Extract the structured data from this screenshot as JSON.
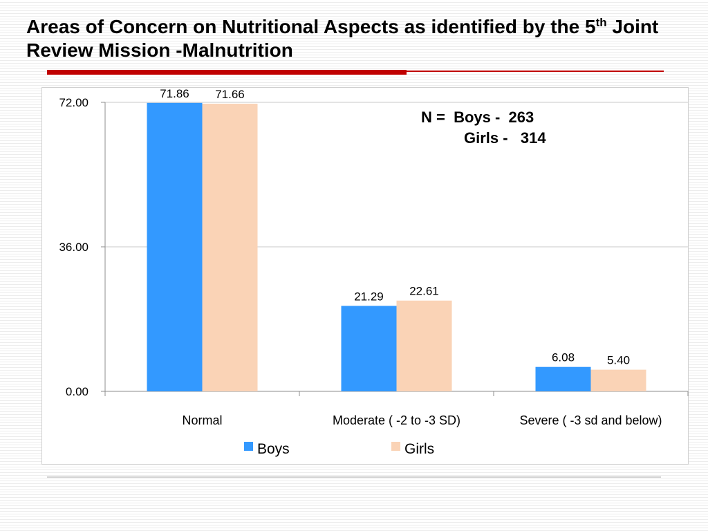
{
  "slide": {
    "title_part1": "Areas of Concern on Nutritional Aspects as identified by the 5",
    "title_sup": "th",
    "title_part2": " Joint Review Mission -Malnutrition"
  },
  "note": {
    "line1": "N =  Boys -  263",
    "line2": "Girls -   314"
  },
  "colors": {
    "boys": "#3399ff",
    "girls": "#fad3b6",
    "title_rule": "#c00000"
  },
  "chart_data": {
    "type": "bar",
    "categories": [
      "Normal",
      "Moderate ( -2 to -3 SD)",
      "Severe  ( -3 sd and below)"
    ],
    "series": [
      {
        "name": "Boys",
        "values": [
          71.86,
          21.29,
          6.08
        ],
        "labels": [
          "71.86",
          "21.29",
          "6.08"
        ]
      },
      {
        "name": "Girls",
        "values": [
          71.66,
          22.61,
          5.4
        ],
        "labels": [
          "71.66",
          "22.61",
          "5.40"
        ]
      }
    ],
    "yticks": [
      0,
      36,
      72
    ],
    "ytick_labels": [
      "0.00",
      "36.00",
      "72.00"
    ],
    "ylim": [
      0,
      72
    ],
    "grid": true,
    "legend_position": "bottom",
    "title": "",
    "xlabel": "",
    "ylabel": ""
  }
}
